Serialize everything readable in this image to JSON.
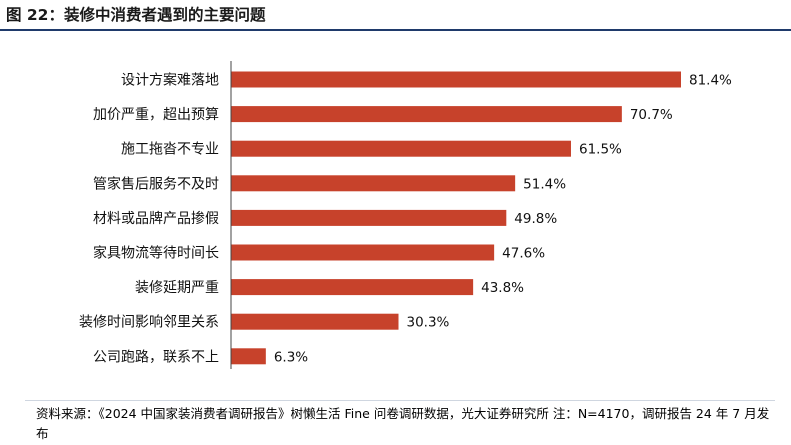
{
  "header": {
    "title": "图 22：装修中消费者遇到的主要问题"
  },
  "chart_data": {
    "type": "bar",
    "orientation": "horizontal",
    "title": "",
    "xlabel": "",
    "ylabel": "",
    "categories": [
      "设计方案难落地",
      "加价严重，超出预算",
      "施工拖沓不专业",
      "管家售后服务不及时",
      "材料或品牌产品掺假",
      "家具物流等待时间长",
      "装修延期严重",
      "装修时间影响邻里关系",
      "公司跑路，联系不上"
    ],
    "values": [
      81.4,
      70.7,
      61.5,
      51.4,
      49.8,
      47.6,
      43.8,
      30.3,
      6.3
    ],
    "value_labels": [
      "81.4%",
      "70.7%",
      "61.5%",
      "51.4%",
      "49.8%",
      "47.6%",
      "43.8%",
      "30.3%",
      "6.3%"
    ],
    "xlim": [
      0,
      100
    ],
    "grid": false,
    "legend": "none",
    "bar_color": "#c7422b"
  },
  "footer": {
    "source": "资料来源：《2024 中国家装消费者调研报告》树懒生活 Fine 问卷调研数据，光大证券研究所 注：N=4170，调研报告 24 年 7 月发布"
  }
}
